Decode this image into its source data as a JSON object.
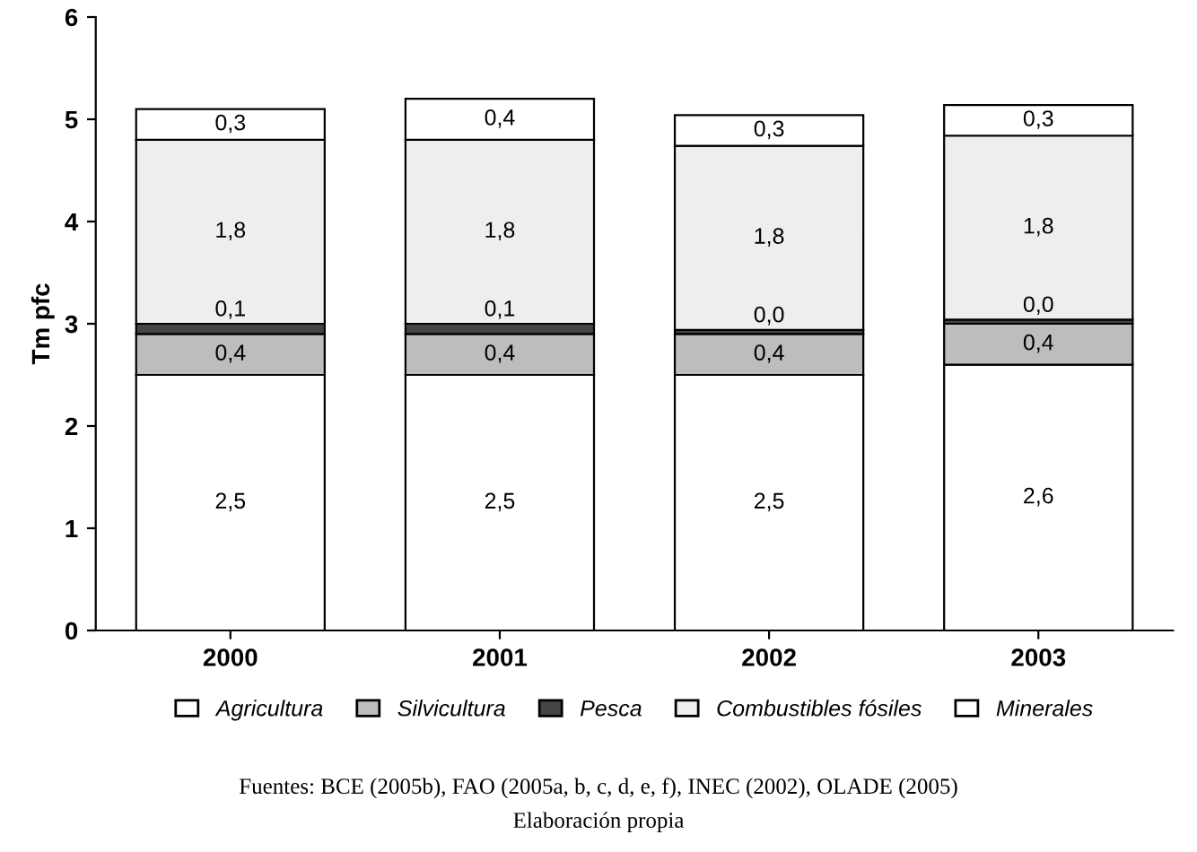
{
  "chart_data": {
    "type": "bar",
    "stacked": true,
    "ylabel": "Tm pfc",
    "categories": [
      "2000",
      "2001",
      "2002",
      "2003"
    ],
    "series": [
      {
        "name": "Agricultura",
        "color": "#ffffff",
        "values": [
          2.5,
          2.5,
          2.5,
          2.6
        ],
        "value_labels": [
          "2,5",
          "2,5",
          "2,5",
          "2,6"
        ]
      },
      {
        "name": "Silvicultura",
        "color": "#bdbdbd",
        "values": [
          0.4,
          0.4,
          0.4,
          0.4
        ],
        "value_labels": [
          "0,4",
          "0,4",
          "0,4",
          "0,4"
        ]
      },
      {
        "name": "Pesca",
        "color": "#444444",
        "values": [
          0.1,
          0.1,
          0.04,
          0.04
        ],
        "value_labels": [
          "0,1",
          "0,1",
          "0,0",
          "0,0"
        ]
      },
      {
        "name": "Combustibles fósiles",
        "color": "#eeeeee",
        "values": [
          1.8,
          1.8,
          1.8,
          1.8
        ],
        "value_labels": [
          "1,8",
          "1,8",
          "1,8",
          "1,8"
        ]
      },
      {
        "name": "Minerales",
        "color": "#ffffff",
        "values": [
          0.3,
          0.4,
          0.3,
          0.3
        ],
        "value_labels": [
          "0,3",
          "0,4",
          "0,3",
          "0,3"
        ]
      }
    ],
    "ylim": [
      0,
      6
    ],
    "yticks": [
      0,
      1,
      2,
      3,
      4,
      5,
      6
    ],
    "legend": "bottom",
    "grid": false,
    "annotations": [
      "Fuentes: BCE (2005b), FAO (2005a, b, c, d, e, f), INEC (2002), OLADE (2005)",
      "Elaboración propia"
    ]
  }
}
